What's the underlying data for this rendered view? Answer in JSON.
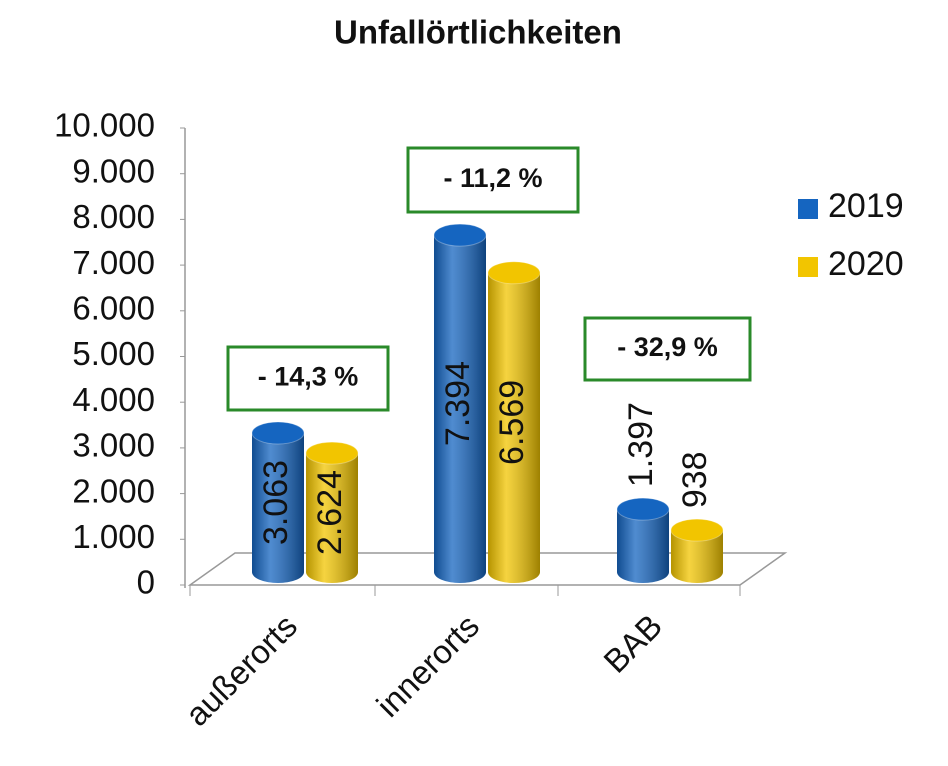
{
  "chart_data": {
    "type": "bar3d",
    "title": "Unfallörtlichkeiten",
    "categories": [
      "außerorts",
      "innerorts",
      "BAB"
    ],
    "series": [
      {
        "name": "2019",
        "color": "#1565c0",
        "values": [
          3063,
          7394,
          1397
        ],
        "value_labels": [
          "3.063",
          "7.394",
          "1.397"
        ]
      },
      {
        "name": "2020",
        "color": "#f2c500",
        "values": [
          2624,
          6569,
          938
        ],
        "value_labels": [
          "2.624",
          "6.569",
          "938"
        ]
      }
    ],
    "annotations": [
      "- 14,3 %",
      "- 11,2 %",
      "- 32,9 %"
    ],
    "ylim": [
      0,
      10000
    ],
    "yticks": [
      0,
      {
        "value": 1000,
        "label": "1.000"
      },
      {
        "value": 2000,
        "label": "2.000"
      },
      {
        "value": 3000,
        "label": "3.000"
      },
      {
        "value": 4000,
        "label": "4.000"
      },
      {
        "value": 5000,
        "label": "5.000"
      },
      {
        "value": 6000,
        "label": "6.000"
      },
      {
        "value": 7000,
        "label": "7.000"
      },
      {
        "value": 8000,
        "label": "8.000"
      },
      {
        "value": 9000,
        "label": "9.000"
      },
      {
        "value": 10000,
        "label": "10.000"
      }
    ],
    "legend": "right",
    "annotation_color": "#2a8a2a"
  }
}
